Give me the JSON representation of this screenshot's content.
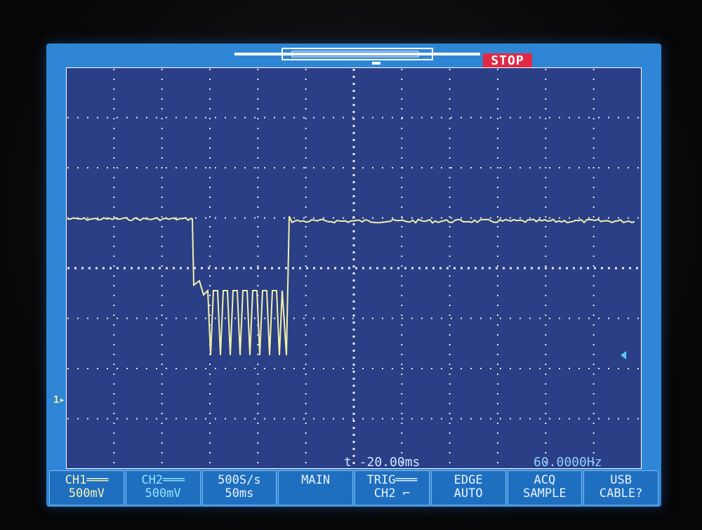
{
  "status": {
    "run_state": "STOP"
  },
  "channel_marker": {
    "label": "1▸"
  },
  "readouts": {
    "time_offset": "t -20.00ms",
    "frequency": "60.0000Hz"
  },
  "softkeys": [
    {
      "line1": "CH1═══",
      "line2": "500mV"
    },
    {
      "line1": "CH2═══",
      "line2": "500mV"
    },
    {
      "line1": "500S/s",
      "line2": "50ms"
    },
    {
      "line1": "MAIN",
      "line2": ""
    },
    {
      "line1": "TRIG═══",
      "line2": "CH2 ⌐"
    },
    {
      "line1": "EDGE",
      "line2": "AUTO"
    },
    {
      "line1": "ACQ",
      "line2": "SAMPLE"
    },
    {
      "line1": "USB",
      "line2": "CABLE?"
    }
  ],
  "colors": {
    "screen": "#2f86d6",
    "trace": "#f2f0a8",
    "grid_dots": "#ffffff",
    "stop_badge": "#e02a45"
  }
}
